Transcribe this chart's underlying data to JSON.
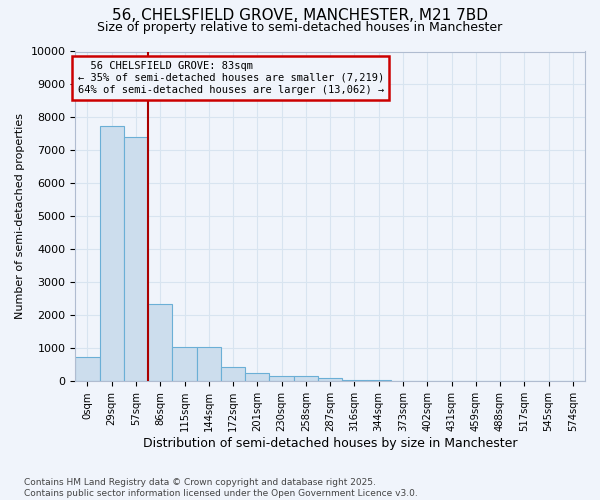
{
  "title1": "56, CHELSFIELD GROVE, MANCHESTER, M21 7BD",
  "title2": "Size of property relative to semi-detached houses in Manchester",
  "xlabel": "Distribution of semi-detached houses by size in Manchester",
  "ylabel": "Number of semi-detached properties",
  "footer": "Contains HM Land Registry data © Crown copyright and database right 2025.\nContains public sector information licensed under the Open Government Licence v3.0.",
  "bin_labels": [
    "0sqm",
    "29sqm",
    "57sqm",
    "86sqm",
    "115sqm",
    "144sqm",
    "172sqm",
    "201sqm",
    "230sqm",
    "258sqm",
    "287sqm",
    "316sqm",
    "344sqm",
    "373sqm",
    "402sqm",
    "431sqm",
    "459sqm",
    "488sqm",
    "517sqm",
    "545sqm",
    "574sqm"
  ],
  "bar_values": [
    750,
    7750,
    7400,
    2350,
    1050,
    1050,
    450,
    250,
    175,
    150,
    100,
    50,
    30,
    10,
    5,
    2,
    1,
    0,
    0,
    0,
    0
  ],
  "bar_color": "#ccdded",
  "bar_edge_color": "#6bafd6",
  "property_label": "56 CHELSFIELD GROVE: 83sqm",
  "pct_smaller": 35,
  "count_smaller": 7219,
  "pct_larger": 64,
  "count_larger": 13062,
  "vline_color": "#aa0000",
  "annotation_box_color": "#cc0000",
  "vline_x_index": 2.5,
  "ylim": [
    0,
    10000
  ],
  "yticks": [
    0,
    1000,
    2000,
    3000,
    4000,
    5000,
    6000,
    7000,
    8000,
    9000,
    10000
  ],
  "background_color": "#f0f4fb",
  "grid_color": "#d8e4f0",
  "title1_fontsize": 11,
  "title2_fontsize": 9
}
